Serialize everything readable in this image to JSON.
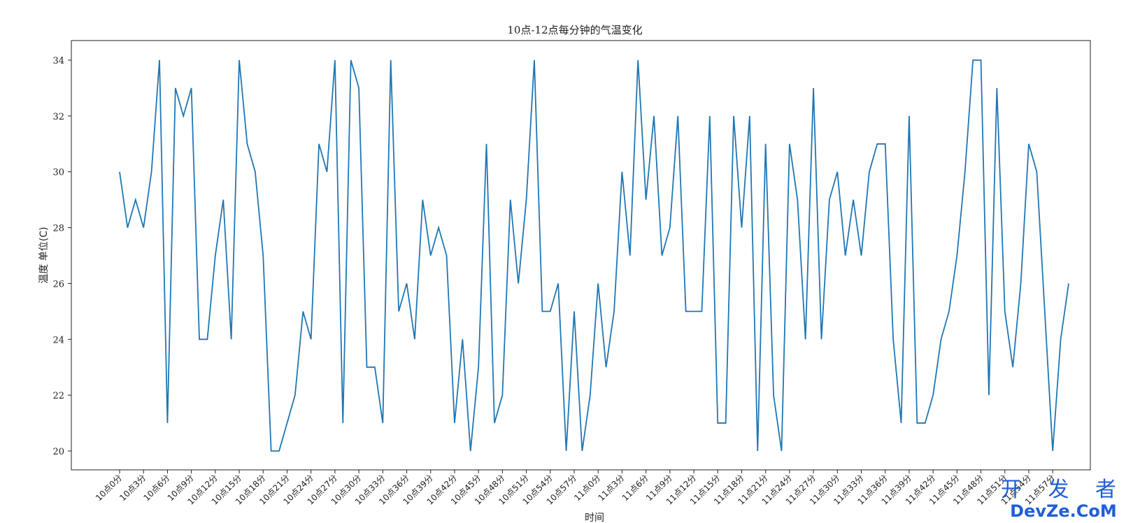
{
  "chart_data": {
    "type": "line",
    "title": "10点-12点每分钟的气温变化",
    "xlabel": "时间",
    "ylabel": "温度 单位(C)",
    "ylim": [
      20,
      34
    ],
    "yticks": [
      20,
      22,
      24,
      26,
      28,
      30,
      32,
      34
    ],
    "x_tick_step": 3,
    "x": [
      "10点0分",
      "10点1分",
      "10点2分",
      "10点3分",
      "10点4分",
      "10点5分",
      "10点6分",
      "10点7分",
      "10点8分",
      "10点9分",
      "10点10分",
      "10点11分",
      "10点12分",
      "10点13分",
      "10点14分",
      "10点15分",
      "10点16分",
      "10点17分",
      "10点18分",
      "10点19分",
      "10点20分",
      "10点21分",
      "10点22分",
      "10点23分",
      "10点24分",
      "10点25分",
      "10点26分",
      "10点27分",
      "10点28分",
      "10点29分",
      "10点30分",
      "10点31分",
      "10点32分",
      "10点33分",
      "10点34分",
      "10点35分",
      "10点36分",
      "10点37分",
      "10点38分",
      "10点39分",
      "10点40分",
      "10点41分",
      "10点42分",
      "10点43分",
      "10点44分",
      "10点45分",
      "10点46分",
      "10点47分",
      "10点48分",
      "10点49分",
      "10点50分",
      "10点51分",
      "10点52分",
      "10点53分",
      "10点54分",
      "10点55分",
      "10点56分",
      "10点57分",
      "10点58分",
      "10点59分",
      "11点0分",
      "11点1分",
      "11点2分",
      "11点3分",
      "11点4分",
      "11点5分",
      "11点6分",
      "11点7分",
      "11点8分",
      "11点9分",
      "11点10分",
      "11点11分",
      "11点12分",
      "11点13分",
      "11点14分",
      "11点15分",
      "11点16分",
      "11点17分",
      "11点18分",
      "11点19分",
      "11点20分",
      "11点21分",
      "11点22分",
      "11点23分",
      "11点24分",
      "11点25分",
      "11点26分",
      "11点27分",
      "11点28分",
      "11点29分",
      "11点30分",
      "11点31分",
      "11点32分",
      "11点33分",
      "11点34分",
      "11点35分",
      "11点36分",
      "11点37分",
      "11点38分",
      "11点39分",
      "11点40分",
      "11点41分",
      "11点42分",
      "11点43分",
      "11点44分",
      "11点45分",
      "11点46分",
      "11点47分",
      "11点48分",
      "11点49分",
      "11点50分",
      "11点51分",
      "11点52分",
      "11点53分",
      "11点54分",
      "11点55分",
      "11点56分",
      "11点57分",
      "11点58分",
      "11点59分"
    ],
    "series": [
      {
        "color": "#1f77b4",
        "values": [
          30,
          28,
          29,
          28,
          30,
          34,
          21,
          33,
          32,
          33,
          24,
          24,
          27,
          29,
          24,
          34,
          31,
          30,
          27,
          20,
          20,
          21,
          22,
          25,
          24,
          31,
          30,
          34,
          21,
          34,
          33,
          23,
          23,
          21,
          34,
          25,
          26,
          24,
          29,
          27,
          28,
          27,
          21,
          24,
          20,
          23,
          31,
          21,
          22,
          29,
          26,
          29,
          34,
          25,
          25,
          26,
          20,
          25,
          20,
          22,
          26,
          23,
          25,
          30,
          27,
          34,
          29,
          32,
          27,
          28,
          32,
          25,
          25,
          25,
          32,
          21,
          21,
          32,
          28,
          32,
          20,
          31,
          22,
          20,
          31,
          29,
          24,
          33,
          24,
          29,
          30,
          27,
          29,
          27,
          30,
          31,
          31,
          24,
          21,
          32,
          21,
          21,
          22,
          24,
          25,
          27,
          30,
          34,
          34,
          22,
          33,
          25,
          23,
          26,
          31,
          30,
          25,
          20,
          24,
          26
        ]
      }
    ],
    "grid": false,
    "legend": "none"
  },
  "watermark": {
    "line1": "开 发 者",
    "line2": "DevZe.CoM",
    "icon": "weibo-icon"
  }
}
